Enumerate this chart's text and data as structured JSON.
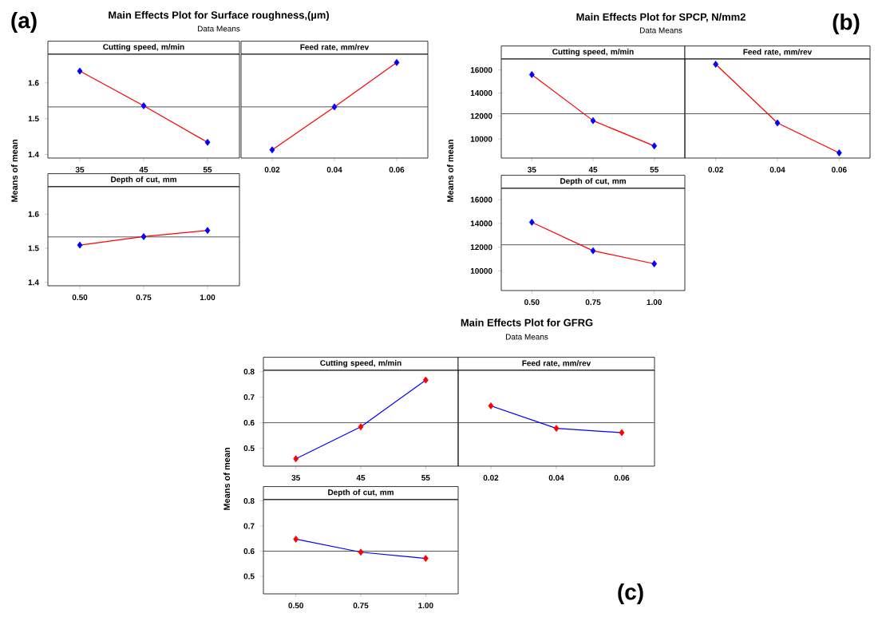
{
  "chart_data": [
    {
      "type": "line",
      "title": "Cutting speed, m/min",
      "ylabel": "Means of mean",
      "annotations": [
        "Main Effects Plot for Surface roughness,(µm)",
        "Data Means",
        "(a)"
      ],
      "categories": [
        "35",
        "45",
        "55"
      ],
      "values": [
        1.633,
        1.536,
        1.434
      ],
      "color": "#ff0000",
      "colors": [
        "#0000ff",
        "#0000ff",
        "#0000ff"
      ],
      "marker": "diamond",
      "ylim": [
        1.39,
        1.68
      ],
      "yticks": [
        1.4,
        1.5,
        1.6
      ],
      "ref_lines": [
        {
          "axis": "y",
          "value": 1.533,
          "color": "#555555"
        }
      ]
    },
    {
      "type": "line",
      "title": "Feed rate, mm/rev",
      "categories": [
        "0.02",
        "0.04",
        "0.06"
      ],
      "values": [
        1.413,
        1.533,
        1.657
      ],
      "color": "#ff0000",
      "colors": [
        "#0000ff",
        "#0000ff",
        "#0000ff"
      ],
      "marker": "diamond",
      "ylim": [
        1.39,
        1.68
      ],
      "yticks": [
        1.4,
        1.5,
        1.6
      ],
      "tick_labels": "x",
      "ref_lines": [
        {
          "axis": "y",
          "value": 1.533,
          "color": "#555555"
        }
      ]
    },
    {
      "type": "line",
      "title": "Depth of cut, mm",
      "categories": [
        "0.50",
        "0.75",
        "1.00"
      ],
      "values": [
        1.509,
        1.534,
        1.552
      ],
      "color": "#ff0000",
      "colors": [
        "#0000ff",
        "#0000ff",
        "#0000ff"
      ],
      "marker": "diamond",
      "ylim": [
        1.39,
        1.68
      ],
      "yticks": [
        1.4,
        1.5,
        1.6
      ],
      "ref_lines": [
        {
          "axis": "y",
          "value": 1.533,
          "color": "#555555"
        }
      ]
    },
    {
      "type": "line",
      "title": "Cutting speed, m/min",
      "ylabel": "Means of mean",
      "annotations": [
        "Main Effects Plot for SPCP, N/mm2",
        "Data Means",
        "(b)"
      ],
      "categories": [
        "35",
        "45",
        "55"
      ],
      "values": [
        15600,
        11600,
        9400
      ],
      "color": "#ff0000",
      "colors": [
        "#0000ff",
        "#0000ff",
        "#0000ff"
      ],
      "marker": "diamond",
      "ylim": [
        8350,
        16950
      ],
      "yticks": [
        10000,
        12000,
        14000,
        16000
      ],
      "ref_lines": [
        {
          "axis": "y",
          "value": 12200,
          "color": "#555555"
        }
      ]
    },
    {
      "type": "line",
      "title": "Feed rate, mm/rev",
      "categories": [
        "0.02",
        "0.04",
        "0.06"
      ],
      "values": [
        16500,
        11400,
        8800
      ],
      "color": "#ff0000",
      "colors": [
        "#0000ff",
        "#0000ff",
        "#0000ff"
      ],
      "marker": "diamond",
      "ylim": [
        8350,
        16950
      ],
      "yticks": [
        10000,
        12000,
        14000,
        16000
      ],
      "tick_labels": "x",
      "ref_lines": [
        {
          "axis": "y",
          "value": 12200,
          "color": "#555555"
        }
      ]
    },
    {
      "type": "line",
      "title": "Depth of cut, mm",
      "categories": [
        "0.50",
        "0.75",
        "1.00"
      ],
      "values": [
        14100,
        11700,
        10600
      ],
      "color": "#ff0000",
      "colors": [
        "#0000ff",
        "#0000ff",
        "#0000ff"
      ],
      "marker": "diamond",
      "ylim": [
        8350,
        16950
      ],
      "yticks": [
        10000,
        12000,
        14000,
        16000
      ],
      "ref_lines": [
        {
          "axis": "y",
          "value": 12200,
          "color": "#555555"
        }
      ]
    },
    {
      "type": "line",
      "title": "Cutting speed, m/min",
      "ylabel": "Means of mean",
      "annotations": [
        "Main Effects Plot for GFRG",
        "Data Means",
        "(c)"
      ],
      "categories": [
        "35",
        "45",
        "55"
      ],
      "values": [
        0.459,
        0.584,
        0.767
      ],
      "color": "#0000ff",
      "colors": [
        "#ff0000",
        "#ff0000",
        "#ff0000"
      ],
      "marker": "diamond",
      "ylim": [
        0.43,
        0.805
      ],
      "yticks": [
        0.5,
        0.6,
        0.7,
        0.8
      ],
      "ref_lines": [
        {
          "axis": "y",
          "value": 0.6,
          "color": "#555555"
        }
      ]
    },
    {
      "type": "line",
      "title": "Feed rate, mm/rev",
      "categories": [
        "0.02",
        "0.04",
        "0.06"
      ],
      "values": [
        0.666,
        0.578,
        0.561
      ],
      "color": "#0000ff",
      "colors": [
        "#ff0000",
        "#ff0000",
        "#ff0000"
      ],
      "marker": "diamond",
      "ylim": [
        0.43,
        0.805
      ],
      "yticks": [
        0.5,
        0.6,
        0.7,
        0.8
      ],
      "tick_labels": "x",
      "ref_lines": [
        {
          "axis": "y",
          "value": 0.6,
          "color": "#555555"
        }
      ]
    },
    {
      "type": "line",
      "title": "Depth of cut, mm",
      "categories": [
        "0.50",
        "0.75",
        "1.00"
      ],
      "values": [
        0.648,
        0.596,
        0.571
      ],
      "color": "#0000ff",
      "colors": [
        "#ff0000",
        "#ff0000",
        "#ff0000"
      ],
      "marker": "diamond",
      "ylim": [
        0.43,
        0.805
      ],
      "yticks": [
        0.5,
        0.6,
        0.7,
        0.8
      ],
      "ref_lines": [
        {
          "axis": "y",
          "value": 0.6,
          "color": "#555555"
        }
      ]
    }
  ]
}
